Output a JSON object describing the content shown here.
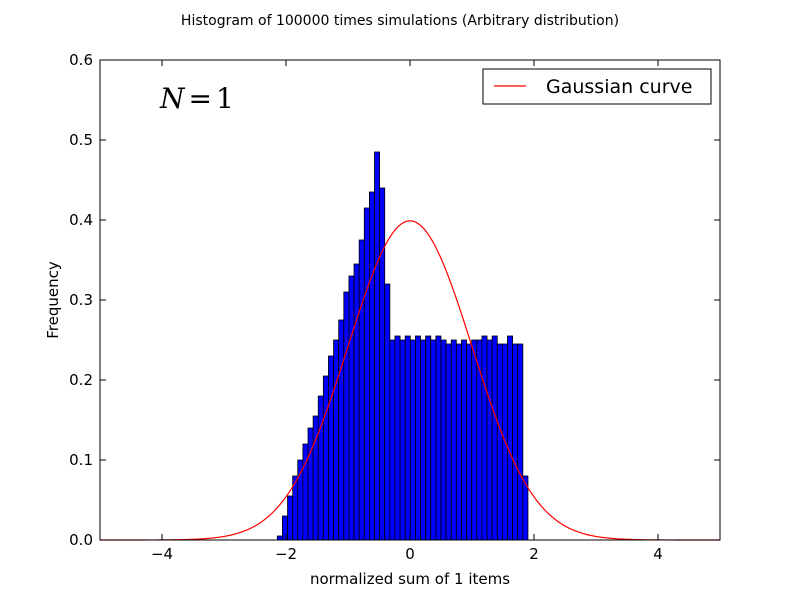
{
  "chart_data": {
    "type": "bar",
    "title": "Histogram of 100000 times simulations (Arbitrary distribution)",
    "xlabel": "normalized sum of 1 items",
    "ylabel": "Frequency",
    "xlim": [
      -5,
      5
    ],
    "ylim": [
      0,
      0.6
    ],
    "xticks": [
      -4,
      -2,
      0,
      2,
      4
    ],
    "xtick_labels": [
      "−4",
      "−2",
      "0",
      "2",
      "4"
    ],
    "yticks": [
      0,
      0.1,
      0.2,
      0.3,
      0.4,
      0.5,
      0.6
    ],
    "ytick_labels": [
      "0.0",
      "0.1",
      "0.2",
      "0.3",
      "0.4",
      "0.5",
      "0.6"
    ],
    "grid": false,
    "legend": {
      "position": "top-right",
      "entries": [
        {
          "label": "Gaussian curve",
          "color": "#ff0000"
        }
      ]
    },
    "annotation": {
      "lhs": "N",
      "eq": "=",
      "rhs": "1"
    },
    "histogram": {
      "color": "#0000ff",
      "edgecolor": "#000000",
      "bin_width": 0.0825,
      "bin_left_edges": [
        -2.14,
        -2.0575,
        -1.975,
        -1.8925,
        -1.81,
        -1.7275,
        -1.645,
        -1.5625,
        -1.48,
        -1.3975,
        -1.315,
        -1.2325,
        -1.15,
        -1.0675,
        -0.985,
        -0.9025,
        -0.82,
        -0.7375,
        -0.655,
        -0.5725,
        -0.49,
        -0.4075,
        -0.325,
        -0.2425,
        -0.16,
        -0.0775,
        0.005,
        0.0875,
        0.17,
        0.2525,
        0.335,
        0.4175,
        0.5,
        0.5825,
        0.665,
        0.7475,
        0.83,
        0.9125,
        0.995,
        1.0775,
        1.16,
        1.2425,
        1.325,
        1.4075,
        1.49,
        1.5725,
        1.655,
        1.7375,
        1.82
      ],
      "values": [
        0.005,
        0.03,
        0.055,
        0.08,
        0.1,
        0.12,
        0.14,
        0.155,
        0.18,
        0.205,
        0.23,
        0.25,
        0.275,
        0.31,
        0.33,
        0.345,
        0.375,
        0.415,
        0.435,
        0.485,
        0.44,
        0.32,
        0.25,
        0.255,
        0.25,
        0.255,
        0.25,
        0.255,
        0.25,
        0.255,
        0.25,
        0.255,
        0.25,
        0.245,
        0.25,
        0.245,
        0.25,
        0.245,
        0.25,
        0.25,
        0.255,
        0.25,
        0.255,
        0.245,
        0.245,
        0.255,
        0.245,
        0.245,
        0.08
      ]
    },
    "series": [
      {
        "name": "Gaussian curve",
        "type": "line",
        "color": "#ff0000",
        "function": "standard_normal_pdf",
        "mean": 0,
        "std": 1
      }
    ]
  }
}
